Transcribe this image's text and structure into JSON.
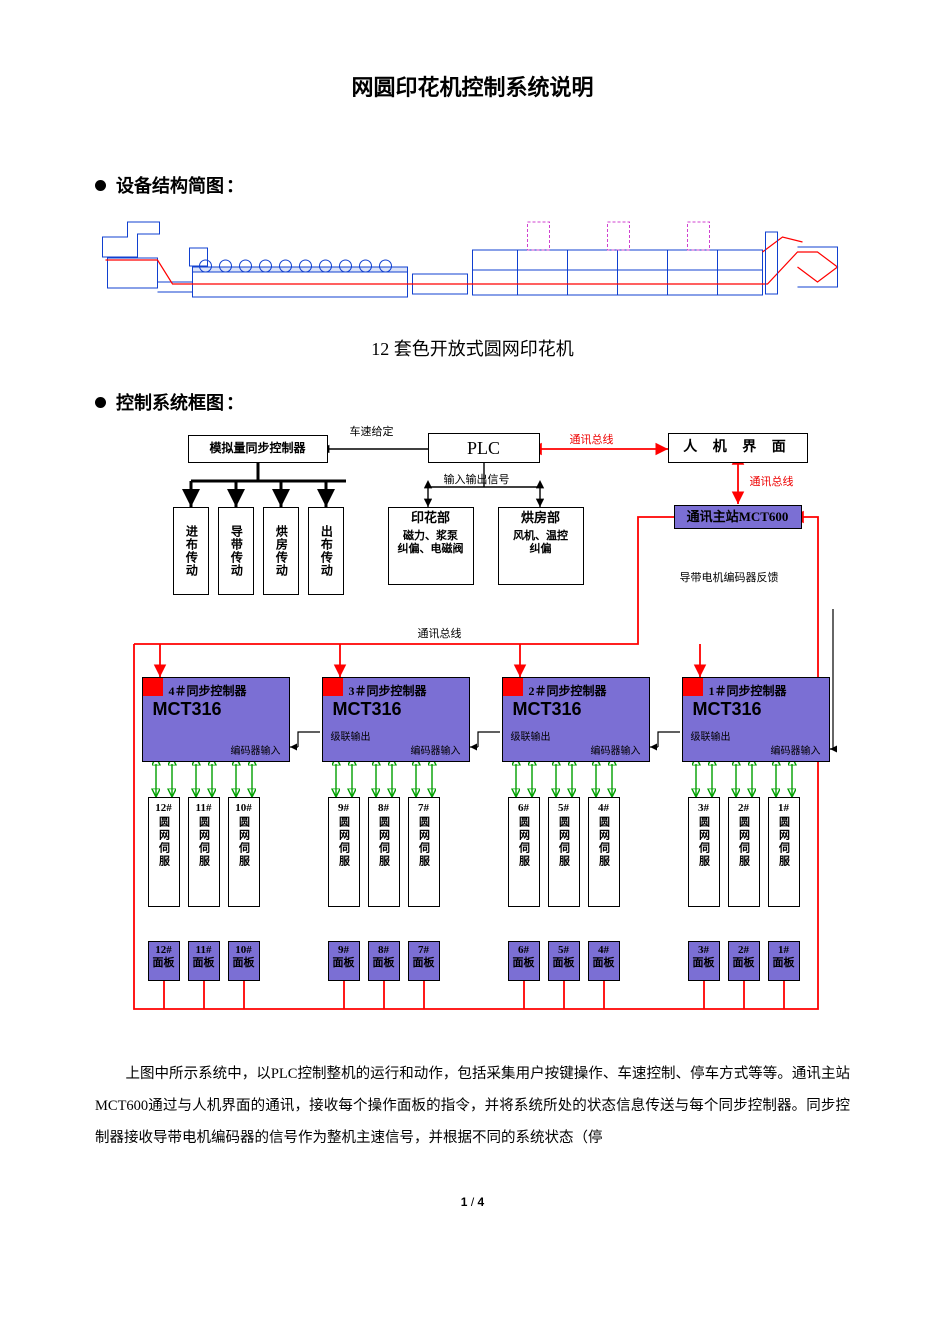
{
  "title": "网圆印花机控制系统说明",
  "section1_head": "设备结构简图",
  "machine_caption": "12 套色开放式圆网印花机",
  "section2_head": "控制系统框图",
  "diagram": {
    "colors": {
      "purple": "#7b6fd4",
      "red": "#ff0000",
      "green": "#00a000",
      "black": "#000000",
      "blue": "#1040d0",
      "magenta": "#d040d0"
    },
    "top": {
      "analog_ctrl": "模拟量同步控制器",
      "speed_set": "车速给定",
      "plc": "PLC",
      "bus1": "通讯总线",
      "hmi": "人 机 界 面",
      "bus2": "通讯总线",
      "io_label": "输入输出信号",
      "mct600": "通讯主站MCT600",
      "encoder_fb": "导带电机编码器反馈",
      "drives": [
        "进布传动",
        "导带传动",
        "烘房传动",
        "出布传动"
      ],
      "print_box_title": "印花部",
      "print_box_lines": [
        "磁力、浆泵",
        "纠偏、电磁阀"
      ],
      "dry_box_title": "烘房部",
      "dry_box_lines": [
        "风机、温控",
        "纠偏"
      ],
      "bus_mid": "通讯总线"
    },
    "controllers": [
      {
        "n": "4",
        "title": "4＃同步控制器",
        "model": "MCT316",
        "cascade": "级联输出",
        "enc": "编码器输入"
      },
      {
        "n": "3",
        "title": "3＃同步控制器",
        "model": "MCT316",
        "cascade": "级联输出",
        "enc": "编码器输入"
      },
      {
        "n": "2",
        "title": "2＃同步控制器",
        "model": "MCT316",
        "cascade": "级联输出",
        "enc": "编码器输入"
      },
      {
        "n": "1",
        "title": "1＃同步控制器",
        "model": "MCT316",
        "cascade": "级联输出",
        "enc": "编码器输入"
      }
    ],
    "servo_groups": [
      [
        "12#",
        "11#",
        "10#"
      ],
      [
        "9#",
        "8#",
        "7#"
      ],
      [
        "6#",
        "5#",
        "4#"
      ],
      [
        "3#",
        "2#",
        "1#"
      ]
    ],
    "servo_label": "圆网伺服",
    "panel_groups": [
      [
        "12#",
        "11#",
        "10#"
      ],
      [
        "9#",
        "8#",
        "7#"
      ],
      [
        "6#",
        "5#",
        "4#"
      ],
      [
        "3#",
        "2#",
        "1#"
      ]
    ],
    "panel_label": "面板"
  },
  "body_text": "上图中所示系统中，以PLC控制整机的运行和动作，包括采集用户按键操作、车速控制、停车方式等等。通讯主站MCT600通过与人机界面的通讯，接收每个操作面板的指令，并将系统所处的状态信息传送与每个同步控制器。同步控制器接收导带电机编码器的信号作为整机主速信号，并根据不同的系统状态（停",
  "page_num_cur": "1",
  "page_num_total": "4"
}
